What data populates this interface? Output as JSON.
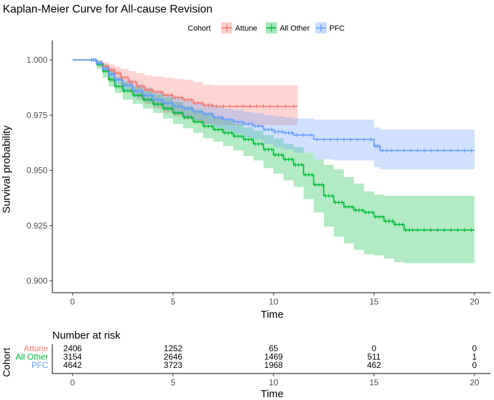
{
  "title": "Kaplan-Meier Curve for All-cause Revision",
  "legend": {
    "title": "Cohort",
    "position": "top-right",
    "items": [
      {
        "label": "Attune",
        "color": "#F8766D"
      },
      {
        "label": "All Other",
        "color": "#00BA38"
      },
      {
        "label": "PFC",
        "color": "#619CFF"
      }
    ]
  },
  "chart_data": {
    "type": "line",
    "subtype": "kaplan-meier-step",
    "title": "Kaplan-Meier Curve for All-cause Revision",
    "xlabel": "Time",
    "ylabel": "Survival probability",
    "xlim": [
      0,
      20
    ],
    "ylim": [
      0.9,
      1.0
    ],
    "x_ticks": [
      0,
      5,
      10,
      15,
      20
    ],
    "y_ticks": [
      0.9,
      0.925,
      0.95,
      0.975,
      1.0
    ],
    "y_tick_labels": [
      "0.900",
      "0.925",
      "0.950",
      "0.975",
      "1.000"
    ],
    "grid": false,
    "confidence_bands": true,
    "series": [
      {
        "name": "Attune",
        "color": "#F8766D",
        "x": [
          0,
          0.9,
          1.2,
          1.5,
          1.8,
          2.1,
          2.4,
          2.8,
          3.2,
          3.6,
          4.0,
          4.5,
          5.0,
          5.5,
          6.0,
          6.5,
          7.0,
          8.0,
          9.0,
          10.0,
          11.2
        ],
        "y": [
          1.0,
          1.0,
          0.9985,
          0.997,
          0.9955,
          0.994,
          0.992,
          0.99,
          0.988,
          0.9865,
          0.9855,
          0.984,
          0.983,
          0.982,
          0.9805,
          0.9795,
          0.979,
          0.979,
          0.979,
          0.979,
          0.979
        ],
        "lower": [
          1.0,
          1.0,
          0.997,
          0.995,
          0.993,
          0.991,
          0.988,
          0.985,
          0.982,
          0.98,
          0.978,
          0.976,
          0.9745,
          0.973,
          0.9715,
          0.971,
          0.9705,
          0.9705,
          0.9705,
          0.9705,
          0.9705
        ],
        "upper": [
          1.0,
          1.0,
          1.0,
          0.999,
          0.998,
          0.997,
          0.996,
          0.995,
          0.994,
          0.993,
          0.9925,
          0.992,
          0.9915,
          0.991,
          0.99,
          0.9888,
          0.9885,
          0.9885,
          0.9885,
          0.9885,
          0.9885
        ]
      },
      {
        "name": "All Other",
        "color": "#00BA38",
        "x": [
          0,
          0.9,
          1.2,
          1.5,
          1.8,
          2.1,
          2.5,
          3.0,
          3.5,
          4.0,
          4.5,
          5.0,
          5.5,
          6.0,
          6.5,
          7.0,
          7.5,
          8.0,
          8.5,
          9.0,
          9.5,
          10.0,
          10.5,
          11.0,
          11.5,
          12.0,
          12.5,
          13.0,
          13.5,
          14.0,
          14.5,
          15.0,
          15.5,
          16.0,
          16.5,
          17.0,
          18.0,
          19.0,
          20.0
        ],
        "y": [
          1.0,
          1.0,
          0.998,
          0.995,
          0.991,
          0.988,
          0.986,
          0.984,
          0.982,
          0.98,
          0.978,
          0.976,
          0.974,
          0.972,
          0.97,
          0.9685,
          0.967,
          0.9655,
          0.964,
          0.962,
          0.9595,
          0.957,
          0.955,
          0.9525,
          0.948,
          0.9435,
          0.9385,
          0.9355,
          0.9335,
          0.932,
          0.931,
          0.929,
          0.927,
          0.9255,
          0.923,
          0.923,
          0.923,
          0.923,
          0.923
        ],
        "lower": [
          1.0,
          1.0,
          0.996,
          0.992,
          0.988,
          0.985,
          0.982,
          0.98,
          0.978,
          0.976,
          0.9735,
          0.971,
          0.969,
          0.967,
          0.9645,
          0.963,
          0.961,
          0.959,
          0.9565,
          0.9545,
          0.951,
          0.9485,
          0.9455,
          0.9425,
          0.937,
          0.931,
          0.9245,
          0.92,
          0.917,
          0.914,
          0.912,
          0.9115,
          0.91,
          0.9085,
          0.908,
          0.908,
          0.908,
          0.908,
          0.908
        ],
        "upper": [
          1.0,
          1.0,
          0.9995,
          0.998,
          0.995,
          0.992,
          0.99,
          0.988,
          0.9865,
          0.9845,
          0.983,
          0.981,
          0.979,
          0.9775,
          0.976,
          0.974,
          0.9725,
          0.971,
          0.9695,
          0.968,
          0.966,
          0.9645,
          0.962,
          0.9605,
          0.958,
          0.955,
          0.9525,
          0.9505,
          0.947,
          0.944,
          0.9405,
          0.939,
          0.9385,
          0.9385,
          0.9385,
          0.9385,
          0.9385,
          0.9385,
          0.9385
        ]
      },
      {
        "name": "PFC",
        "color": "#619CFF",
        "x": [
          0,
          0.9,
          1.2,
          1.5,
          1.8,
          2.1,
          2.5,
          3.0,
          3.5,
          4.0,
          4.5,
          5.0,
          5.5,
          6.0,
          6.5,
          7.0,
          7.5,
          8.0,
          8.5,
          9.0,
          9.5,
          10.0,
          10.5,
          11.0,
          12.0,
          13.0,
          14.0,
          15.0,
          15.3,
          16.0,
          17.0,
          18.0,
          19.0,
          20.0
        ],
        "y": [
          1.0,
          1.0,
          0.9985,
          0.996,
          0.9935,
          0.991,
          0.9885,
          0.986,
          0.984,
          0.982,
          0.9805,
          0.979,
          0.978,
          0.9765,
          0.9755,
          0.974,
          0.973,
          0.972,
          0.971,
          0.97,
          0.9685,
          0.9675,
          0.967,
          0.966,
          0.964,
          0.964,
          0.964,
          0.961,
          0.959,
          0.959,
          0.959,
          0.959,
          0.959,
          0.959
        ],
        "lower": [
          1.0,
          1.0,
          0.9975,
          0.9945,
          0.9915,
          0.989,
          0.986,
          0.983,
          0.981,
          0.979,
          0.977,
          0.9755,
          0.974,
          0.9725,
          0.971,
          0.9695,
          0.968,
          0.9665,
          0.965,
          0.964,
          0.962,
          0.9605,
          0.9595,
          0.958,
          0.955,
          0.9545,
          0.9545,
          0.9515,
          0.9505,
          0.9505,
          0.9505,
          0.9505,
          0.9505,
          0.9505
        ],
        "upper": [
          1.0,
          1.0,
          0.9995,
          0.9975,
          0.9955,
          0.993,
          0.991,
          0.989,
          0.9875,
          0.986,
          0.9845,
          0.983,
          0.982,
          0.981,
          0.98,
          0.979,
          0.978,
          0.9775,
          0.9765,
          0.976,
          0.975,
          0.9745,
          0.974,
          0.9735,
          0.973,
          0.973,
          0.973,
          0.9695,
          0.9685,
          0.9685,
          0.9685,
          0.9685,
          0.9685,
          0.9685
        ]
      }
    ]
  },
  "risk_table": {
    "title": "Number at risk",
    "ylabel": "Cohort",
    "xlabel": "Time",
    "x_ticks": [
      0,
      5,
      10,
      15,
      20
    ],
    "rows": [
      {
        "label": "Attune",
        "color": "#F8766D",
        "values": [
          "2406",
          "1252",
          "65",
          "0",
          "0"
        ]
      },
      {
        "label": "All Other",
        "color": "#00BA38",
        "values": [
          "3154",
          "2646",
          "1469",
          "511",
          "1"
        ]
      },
      {
        "label": "PFC",
        "color": "#619CFF",
        "values": [
          "4642",
          "3723",
          "1968",
          "462",
          "0"
        ]
      }
    ]
  }
}
